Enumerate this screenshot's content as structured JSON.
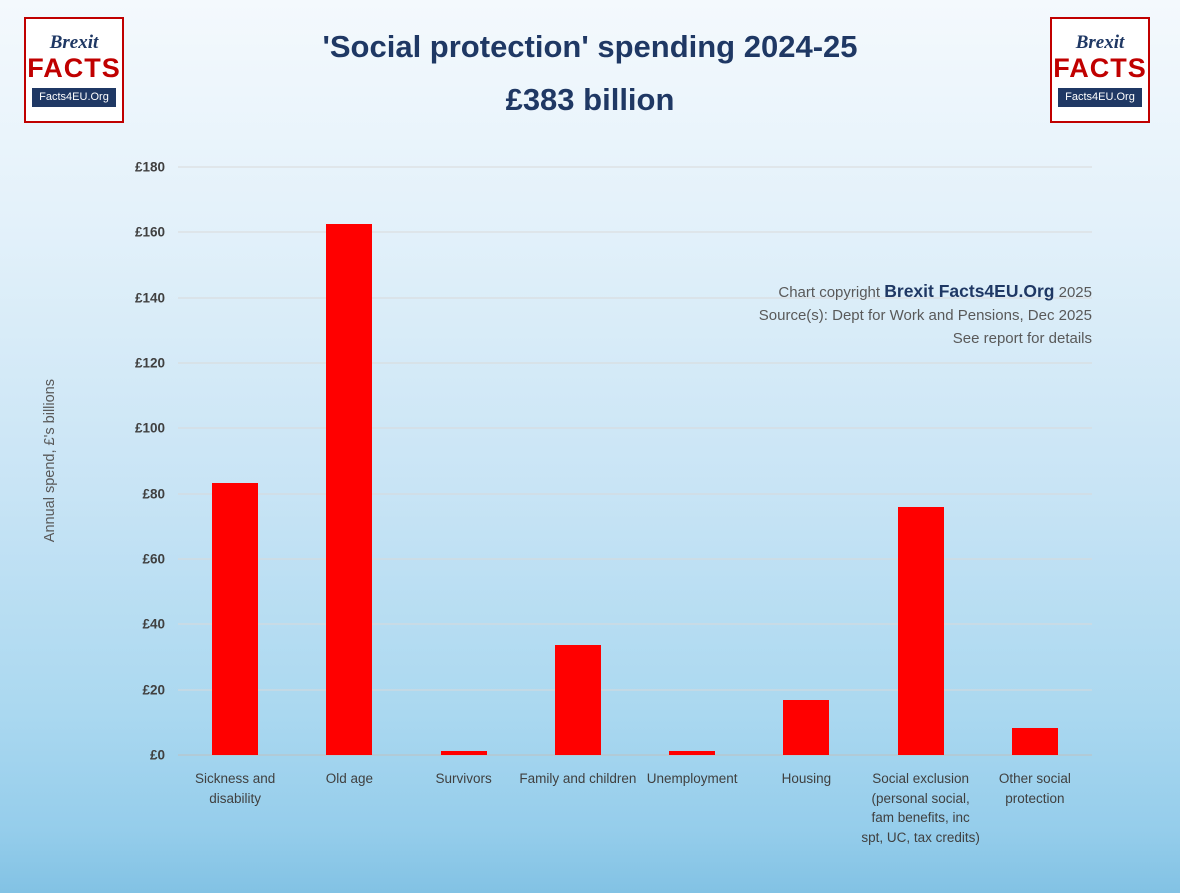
{
  "header": {
    "title_line1": "'Social protection' spending 2024-25",
    "title_line2": "£383 billion"
  },
  "logo": {
    "brexit": "Brexit",
    "facts": "FACTS",
    "org": "Facts4EU.Org"
  },
  "annotation": {
    "copyright_prefix": "Chart copyright ",
    "copyright_brand": "Brexit Facts4EU.Org",
    "copyright_suffix": " 2025",
    "source_line": "Source(s): Dept for Work and Pensions, Dec 2025",
    "note_line": "See report for details"
  },
  "chart_data": {
    "type": "bar",
    "title": "'Social protection' spending 2024-25 £383 billion",
    "categories": [
      "Sickness and disability",
      "Old age",
      "Survivors",
      "Family and children",
      "Unemployment",
      "Housing",
      "Social exclusion (personal social, fam benefits, inc spt, UC, tax credits)",
      "Other social protection"
    ],
    "values": [
      83.3,
      162.5,
      1.2,
      33.7,
      1.2,
      16.8,
      75.9,
      8.4
    ],
    "total_label": "£383 billion",
    "xlabel": "",
    "ylabel": "Annual spend, £'s billions",
    "ylim": [
      0,
      180
    ],
    "ytick_step": 20,
    "ytick_prefix": "£",
    "grid": true,
    "legend": "none",
    "bar_color": "#ff0000"
  },
  "colors": {
    "title": "#1f3864",
    "bar": "#ff0000",
    "annotation_text": "#595959",
    "tick_text": "#404040",
    "gridline": "#d9d9d9",
    "logo_red": "#c00000",
    "logo_navy": "#1f3864"
  }
}
